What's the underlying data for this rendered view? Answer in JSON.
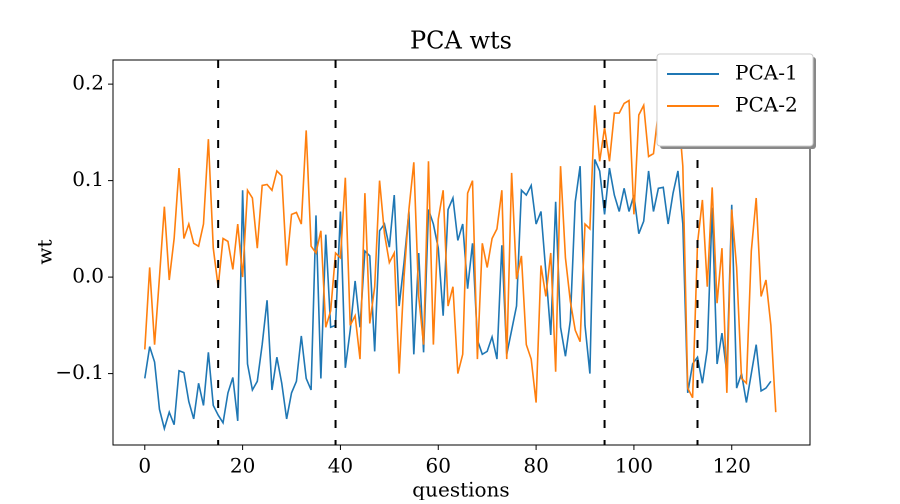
{
  "chart_data": {
    "type": "line",
    "title": "PCA wts",
    "xlabel": "questions",
    "ylabel": "wt",
    "x": [
      0,
      1,
      2,
      3,
      4,
      5,
      6,
      7,
      8,
      9,
      10,
      11,
      12,
      13,
      14,
      15,
      16,
      17,
      18,
      19,
      20,
      21,
      22,
      23,
      24,
      25,
      26,
      27,
      28,
      29,
      30,
      31,
      32,
      33,
      34,
      35,
      36,
      37,
      38,
      39,
      40,
      41,
      42,
      43,
      44,
      45,
      46,
      47,
      48,
      49,
      50,
      51,
      52,
      53,
      54,
      55,
      56,
      57,
      58,
      59,
      60,
      61,
      62,
      63,
      64,
      65,
      66,
      67,
      68,
      69,
      70,
      71,
      72,
      73,
      74,
      75,
      76,
      77,
      78,
      79,
      80,
      81,
      82,
      83,
      84,
      85,
      86,
      87,
      88,
      89,
      90,
      91,
      92,
      93,
      94,
      95,
      96,
      97,
      98,
      99,
      100,
      101,
      102,
      103,
      104,
      105,
      106,
      107,
      108,
      109,
      110,
      111,
      112,
      113,
      114,
      115,
      116,
      117,
      118,
      119,
      120,
      121,
      122,
      123,
      124,
      125,
      126,
      127,
      128,
      129
    ],
    "series": [
      {
        "name": "PCA-1",
        "color": "#1f77b4",
        "values": [
          -0.105,
          -0.072,
          -0.088,
          -0.137,
          -0.157,
          -0.14,
          -0.153,
          -0.097,
          -0.099,
          -0.129,
          -0.147,
          -0.11,
          -0.133,
          -0.078,
          -0.133,
          -0.143,
          -0.151,
          -0.12,
          -0.104,
          -0.149,
          0.09,
          -0.09,
          -0.117,
          -0.108,
          -0.07,
          -0.024,
          -0.117,
          -0.083,
          -0.11,
          -0.147,
          -0.12,
          -0.108,
          -0.061,
          -0.105,
          -0.117,
          0.064,
          -0.105,
          0.044,
          -0.052,
          -0.05,
          0.068,
          -0.094,
          -0.055,
          -0.004,
          -0.052,
          0.027,
          0.022,
          -0.077,
          0.048,
          0.055,
          0.031,
          0.085,
          -0.03,
          0.015,
          0.068,
          -0.08,
          0.025,
          -0.078,
          0.07,
          0.055,
          0.03,
          -0.04,
          0.07,
          0.082,
          0.038,
          0.055,
          -0.012,
          0.035,
          -0.065,
          -0.08,
          -0.077,
          -0.062,
          -0.085,
          0.033,
          -0.08,
          -0.055,
          -0.03,
          0.09,
          0.085,
          0.095,
          0.055,
          0.068,
          0.005,
          -0.06,
          0.078,
          -0.052,
          -0.082,
          -0.045,
          0.078,
          0.115,
          -0.05,
          -0.1,
          0.122,
          0.11,
          0.065,
          0.113,
          0.085,
          0.068,
          0.092,
          0.068,
          0.085,
          0.045,
          0.058,
          0.11,
          0.068,
          0.092,
          0.093,
          0.055,
          0.087,
          0.11,
          0.055,
          -0.12,
          -0.09,
          -0.083,
          -0.11,
          -0.075,
          0.072,
          -0.09,
          -0.058,
          -0.1,
          0.075,
          -0.115,
          -0.1,
          -0.13,
          -0.1,
          -0.07,
          -0.118,
          -0.115,
          -0.108,
          null
        ]
      },
      {
        "name": "PCA-2",
        "color": "#ff7f0e",
        "values": [
          -0.075,
          0.01,
          -0.07,
          0.0,
          0.073,
          -0.003,
          0.04,
          0.113,
          0.04,
          0.055,
          0.035,
          0.032,
          0.055,
          0.143,
          0.03,
          -0.01,
          0.04,
          0.037,
          0.008,
          0.055,
          0.0,
          0.09,
          0.082,
          0.03,
          0.095,
          0.096,
          0.09,
          0.11,
          0.105,
          0.012,
          0.065,
          0.067,
          0.055,
          0.152,
          0.032,
          0.025,
          0.048,
          -0.052,
          -0.035,
          0.025,
          0.02,
          0.103,
          -0.05,
          -0.04,
          -0.085,
          0.087,
          -0.048,
          -0.01,
          0.1,
          0.045,
          0.015,
          0.025,
          -0.1,
          0.0,
          0.07,
          0.119,
          -0.02,
          -0.07,
          0.12,
          -0.07,
          0.06,
          0.09,
          -0.03,
          -0.01,
          -0.1,
          -0.08,
          0.087,
          0.1,
          -0.085,
          0.035,
          0.01,
          0.04,
          0.05,
          0.09,
          -0.085,
          0.108,
          -0.002,
          0.022,
          -0.07,
          -0.085,
          -0.13,
          0.012,
          -0.02,
          0.025,
          -0.098,
          0.115,
          0.02,
          -0.025,
          -0.055,
          -0.067,
          0.055,
          0.05,
          0.178,
          0.12,
          0.155,
          0.12,
          0.17,
          0.17,
          0.18,
          0.183,
          0.065,
          0.168,
          0.178,
          0.125,
          0.128,
          0.172,
          0.175,
          0.15,
          0.175,
          0.178,
          0.115,
          -0.115,
          -0.125,
          0.035,
          0.08,
          -0.01,
          0.093,
          -0.027,
          0.03,
          -0.12,
          0.07,
          0.01,
          -0.105,
          -0.11,
          0.027,
          0.082,
          -0.02,
          -0.003,
          -0.05,
          -0.14
        ]
      }
    ],
    "vlines": [
      15,
      39,
      94,
      113
    ],
    "xlim": [
      -6.5,
      136
    ],
    "ylim": [
      -0.174,
      0.225
    ],
    "xticks": [
      0,
      20,
      40,
      60,
      80,
      100,
      120
    ],
    "yticks": [
      {
        "value": -0.1,
        "label": "−0.1"
      },
      {
        "value": 0,
        "label": "0.0"
      },
      {
        "value": 0.1,
        "label": "0.1"
      },
      {
        "value": 0.2,
        "label": "0.2"
      }
    ],
    "legend": "upper right"
  }
}
